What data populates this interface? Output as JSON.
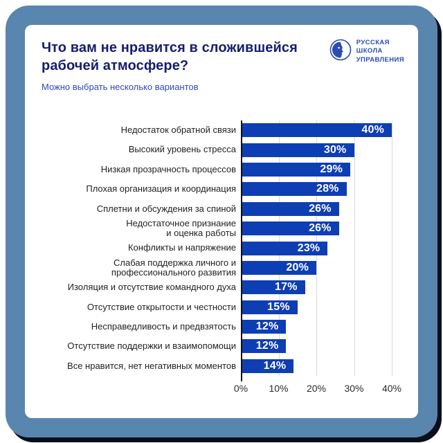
{
  "header": {
    "title": "Что вам не нравится в сложившейся рабочей атмосфере?",
    "subtitle": "Можно выбрать несколько вариантов"
  },
  "logo": {
    "name": "Русская Школа Управления",
    "lines": [
      "РУССКАЯ",
      "ШКОЛА",
      "УПРАВЛЕНИЯ"
    ]
  },
  "colors": {
    "bar": "#0e3eb4",
    "title": "#161d6f",
    "subtitle": "#2c4cb4",
    "frame": "#5886ae",
    "frame_shadow": "#0a0e1c",
    "bar_value_text": "#ffffff",
    "gridline": "#d9d9d9",
    "axis_line": "#111111",
    "category_text": "#1f1f1f"
  },
  "chart_data": {
    "type": "bar",
    "orientation": "horizontal",
    "title": "Что вам не нравится в сложившейся рабочей атмосфере?",
    "subtitle": "Можно выбрать несколько вариантов",
    "categories": [
      "Недостаток обратной связи",
      "Высокий уровень стресса",
      "Низкая прозрачность процессов",
      "Плохая организация и координация",
      "Сплетни и обсуждения за спиной",
      "Недостаточное признание\nи оценка работы",
      "Конфликты и напряжение",
      "Слабая поддержка личного и\nпрофессионального развития",
      "Изоляция и отсутствие командного духа",
      "Отсутствие открытости и честности",
      "Несправедливость и предвзятость",
      "Отсутствие поддержки и взаимопомощи",
      "Все нравится, нет негативных моментов"
    ],
    "values": [
      40,
      30,
      29,
      28,
      26,
      26,
      23,
      20,
      17,
      15,
      12,
      12,
      14
    ],
    "value_labels": [
      "40%",
      "30%",
      "29%",
      "28%",
      "26%",
      "26%",
      "23%",
      "20%",
      "17%",
      "15%",
      "12%",
      "12%",
      "14%"
    ],
    "xlim": [
      0,
      40
    ],
    "x_tick_values": [
      0,
      10,
      20,
      30,
      40
    ],
    "x_tick_labels": [
      "0%",
      "10%",
      "20%",
      "30%",
      "40%"
    ],
    "grid": true,
    "legend": false,
    "bar_color": "#0e3eb4"
  }
}
